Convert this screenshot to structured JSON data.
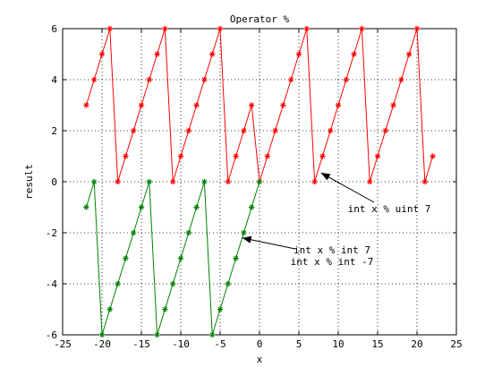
{
  "chart_data": {
    "type": "line",
    "title": "Operator %",
    "xlabel": "x",
    "ylabel": "result",
    "xlim": [
      -25,
      25
    ],
    "ylim": [
      -6,
      6
    ],
    "grid": true,
    "xticks": [
      -25,
      -20,
      -15,
      -10,
      -5,
      0,
      5,
      10,
      15,
      20,
      25
    ],
    "yticks": [
      -6,
      -4,
      -2,
      0,
      2,
      4,
      6
    ],
    "series": [
      {
        "color": "#ff0000",
        "marker": "asterisk",
        "x": [
          -22,
          -21,
          -20,
          -19,
          -18,
          -17,
          -16,
          -15,
          -14,
          -13,
          -12,
          -11,
          -10,
          -9,
          -8,
          -7,
          -6,
          -5,
          -4,
          -3,
          -2,
          -1,
          0,
          1,
          2,
          3,
          4,
          5,
          6,
          7,
          8,
          9,
          10,
          11,
          12,
          13,
          14,
          15,
          16,
          17,
          18,
          19,
          20,
          21,
          22
        ],
        "y": [
          3,
          4,
          5,
          6,
          0,
          1,
          2,
          3,
          4,
          5,
          6,
          0,
          1,
          2,
          3,
          4,
          5,
          6,
          0,
          1,
          2,
          3,
          0,
          1,
          2,
          3,
          4,
          5,
          6,
          0,
          1,
          2,
          3,
          4,
          5,
          6,
          0,
          1,
          2,
          3,
          4,
          5,
          6,
          0,
          1
        ]
      },
      {
        "color": "#008000",
        "marker": "asterisk",
        "x": [
          -22,
          -21,
          -20,
          -19,
          -18,
          -17,
          -16,
          -15,
          -14,
          -13,
          -12,
          -11,
          -10,
          -9,
          -8,
          -7,
          -6,
          -5,
          -4,
          -3,
          -2,
          -1,
          0
        ],
        "y": [
          -1,
          0,
          -6,
          -5,
          -4,
          -3,
          -2,
          -1,
          0,
          -6,
          -5,
          -4,
          -3,
          -2,
          -1,
          0,
          -6,
          -5,
          -4,
          -3,
          -2,
          -1,
          0
        ]
      }
    ],
    "annotations": [
      {
        "lines": [
          "int x % uint 7"
        ],
        "arrow_to": [
          7.8,
          0.35
        ]
      },
      {
        "lines": [
          "int x % int 7",
          "int x % int -7"
        ],
        "arrow_to": [
          -2.2,
          -2.2
        ]
      }
    ]
  }
}
